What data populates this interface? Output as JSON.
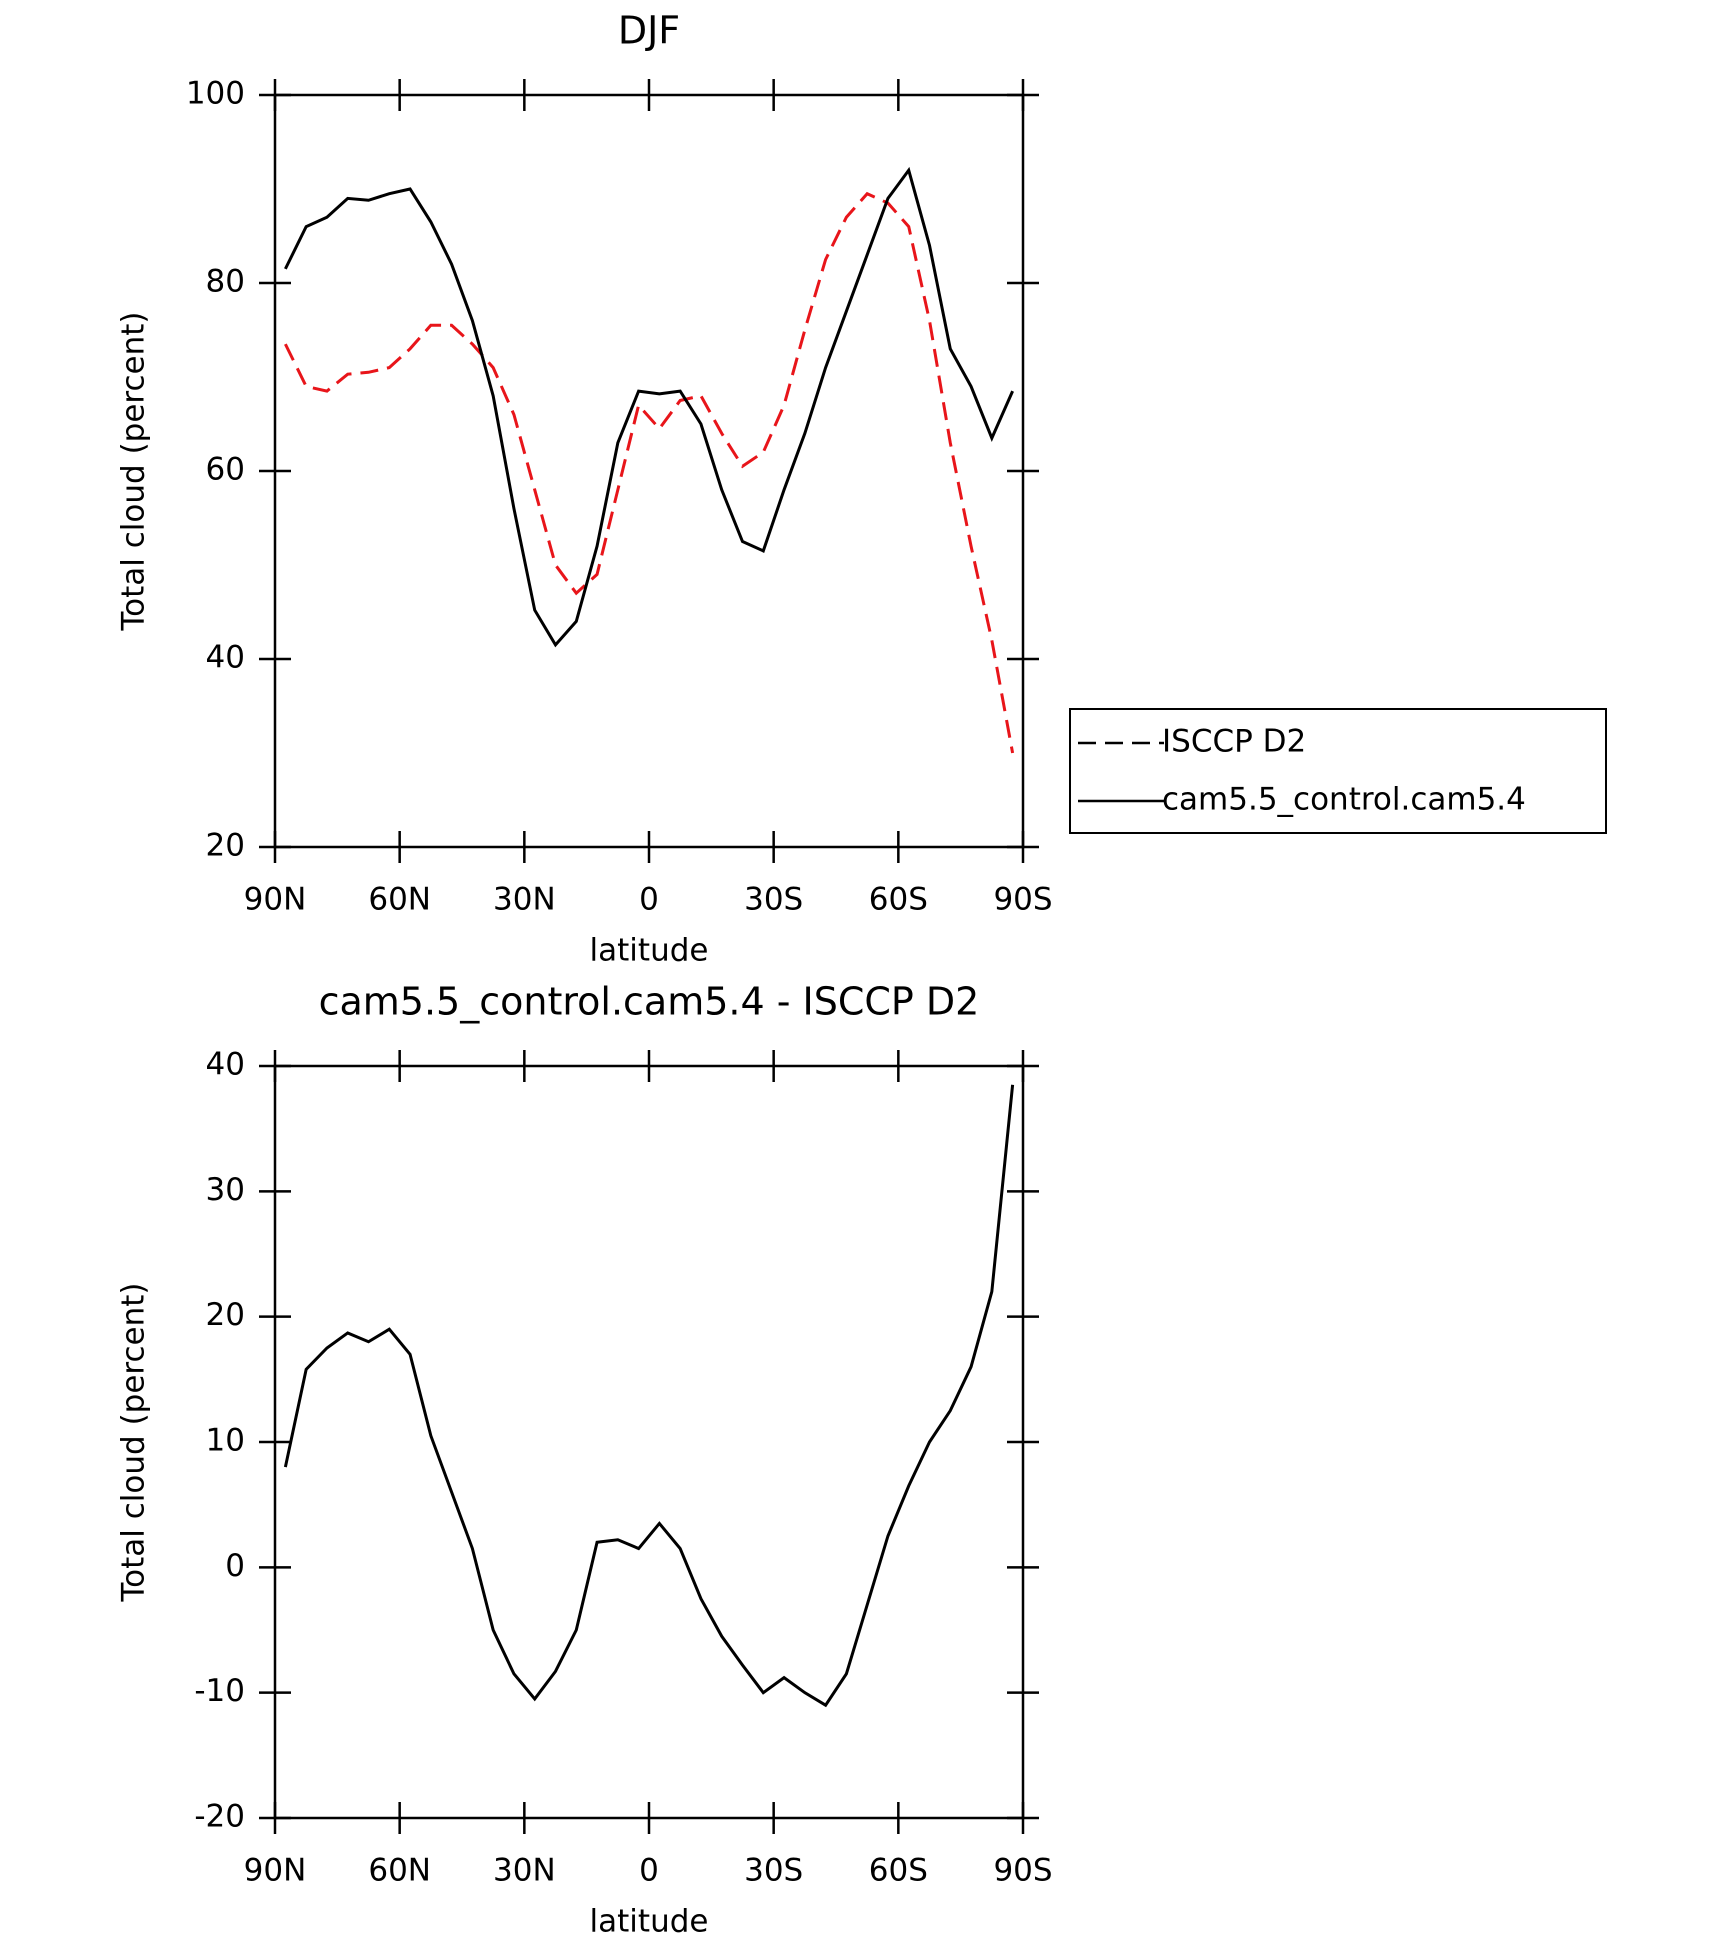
{
  "chart_data": [
    {
      "type": "line",
      "title": "DJF",
      "xlabel": "latitude",
      "ylabel": "Total cloud (percent)",
      "x": [
        87.5,
        82.5,
        77.5,
        72.5,
        67.5,
        62.5,
        57.5,
        52.5,
        47.5,
        42.5,
        37.5,
        32.5,
        27.5,
        22.5,
        17.5,
        12.5,
        7.5,
        2.5,
        -2.5,
        -7.5,
        -12.5,
        -17.5,
        -22.5,
        -27.5,
        -32.5,
        -37.5,
        -42.5,
        -47.5,
        -52.5,
        -57.5,
        -62.5,
        -67.5,
        -72.5,
        -77.5,
        -82.5,
        -87.5
      ],
      "series": [
        {
          "name": "ISCCP D2",
          "color": "#e8151a",
          "style": "dashed",
          "values": [
            73.5,
            69,
            68.5,
            70.3,
            70.5,
            71,
            73,
            75.5,
            75.5,
            73.5,
            71,
            66,
            58,
            50,
            47,
            49,
            58,
            67,
            64.5,
            67.5,
            68,
            64,
            60.5,
            62,
            67,
            75,
            82.5,
            87,
            89.5,
            88.5,
            86,
            76,
            63,
            52,
            42,
            30
          ]
        },
        {
          "name": "cam5.5_control.cam5.4",
          "color": "#000000",
          "style": "solid",
          "values": [
            81.5,
            86,
            87,
            89,
            88.8,
            89.5,
            90,
            86.5,
            82,
            76,
            68,
            56,
            45.2,
            41.5,
            44,
            52,
            63,
            68.5,
            68.2,
            68.5,
            65,
            58,
            52.5,
            51.5,
            58,
            64,
            71,
            77,
            83,
            89,
            92,
            84,
            73,
            69,
            63.5,
            68.5
          ]
        }
      ],
      "xlim": [
        90,
        -90
      ],
      "xticks": [
        {
          "value": 90,
          "label": "90N"
        },
        {
          "value": 60,
          "label": "60N"
        },
        {
          "value": 30,
          "label": "30N"
        },
        0,
        {
          "value": -30,
          "label": "30S"
        },
        {
          "value": -60,
          "label": "60S"
        },
        {
          "value": -90,
          "label": "90S"
        }
      ],
      "ylim": [
        20,
        100
      ],
      "yticks": [
        20,
        40,
        60,
        80,
        100
      ],
      "legend": "right"
    },
    {
      "type": "line",
      "title": "cam5.5_control.cam5.4 - ISCCP D2",
      "xlabel": "latitude",
      "ylabel": "Total cloud (percent)",
      "x": [
        87.5,
        82.5,
        77.5,
        72.5,
        67.5,
        62.5,
        57.5,
        52.5,
        47.5,
        42.5,
        37.5,
        32.5,
        27.5,
        22.5,
        17.5,
        12.5,
        7.5,
        2.5,
        -2.5,
        -7.5,
        -12.5,
        -17.5,
        -22.5,
        -27.5,
        -32.5,
        -37.5,
        -42.5,
        -47.5,
        -52.5,
        -57.5,
        -62.5,
        -67.5,
        -72.5,
        -77.5,
        -82.5,
        -87.5
      ],
      "series": [
        {
          "color": "#000000",
          "style": "solid",
          "values": [
            8,
            15.8,
            17.5,
            18.7,
            18,
            19,
            17,
            10.5,
            6,
            1.5,
            -5,
            -8.5,
            -10.5,
            -8.3,
            -5,
            2,
            2.2,
            1.5,
            3.5,
            1.5,
            -2.5,
            -5.5,
            -7.8,
            -10,
            -8.8,
            -10,
            -11,
            -8.5,
            -3,
            2.5,
            6.5,
            10,
            12.5,
            16,
            22,
            38.5
          ]
        }
      ],
      "xlim": [
        90,
        -90
      ],
      "xticks": [
        {
          "value": 90,
          "label": "90N"
        },
        {
          "value": 60,
          "label": "60N"
        },
        {
          "value": 30,
          "label": "30N"
        },
        0,
        {
          "value": -30,
          "label": "30S"
        },
        {
          "value": -60,
          "label": "60S"
        },
        {
          "value": -90,
          "label": "90S"
        }
      ],
      "ylim": [
        -20,
        40
      ],
      "yticks": [
        -20,
        -10,
        0,
        10,
        20,
        30,
        40
      ]
    }
  ]
}
